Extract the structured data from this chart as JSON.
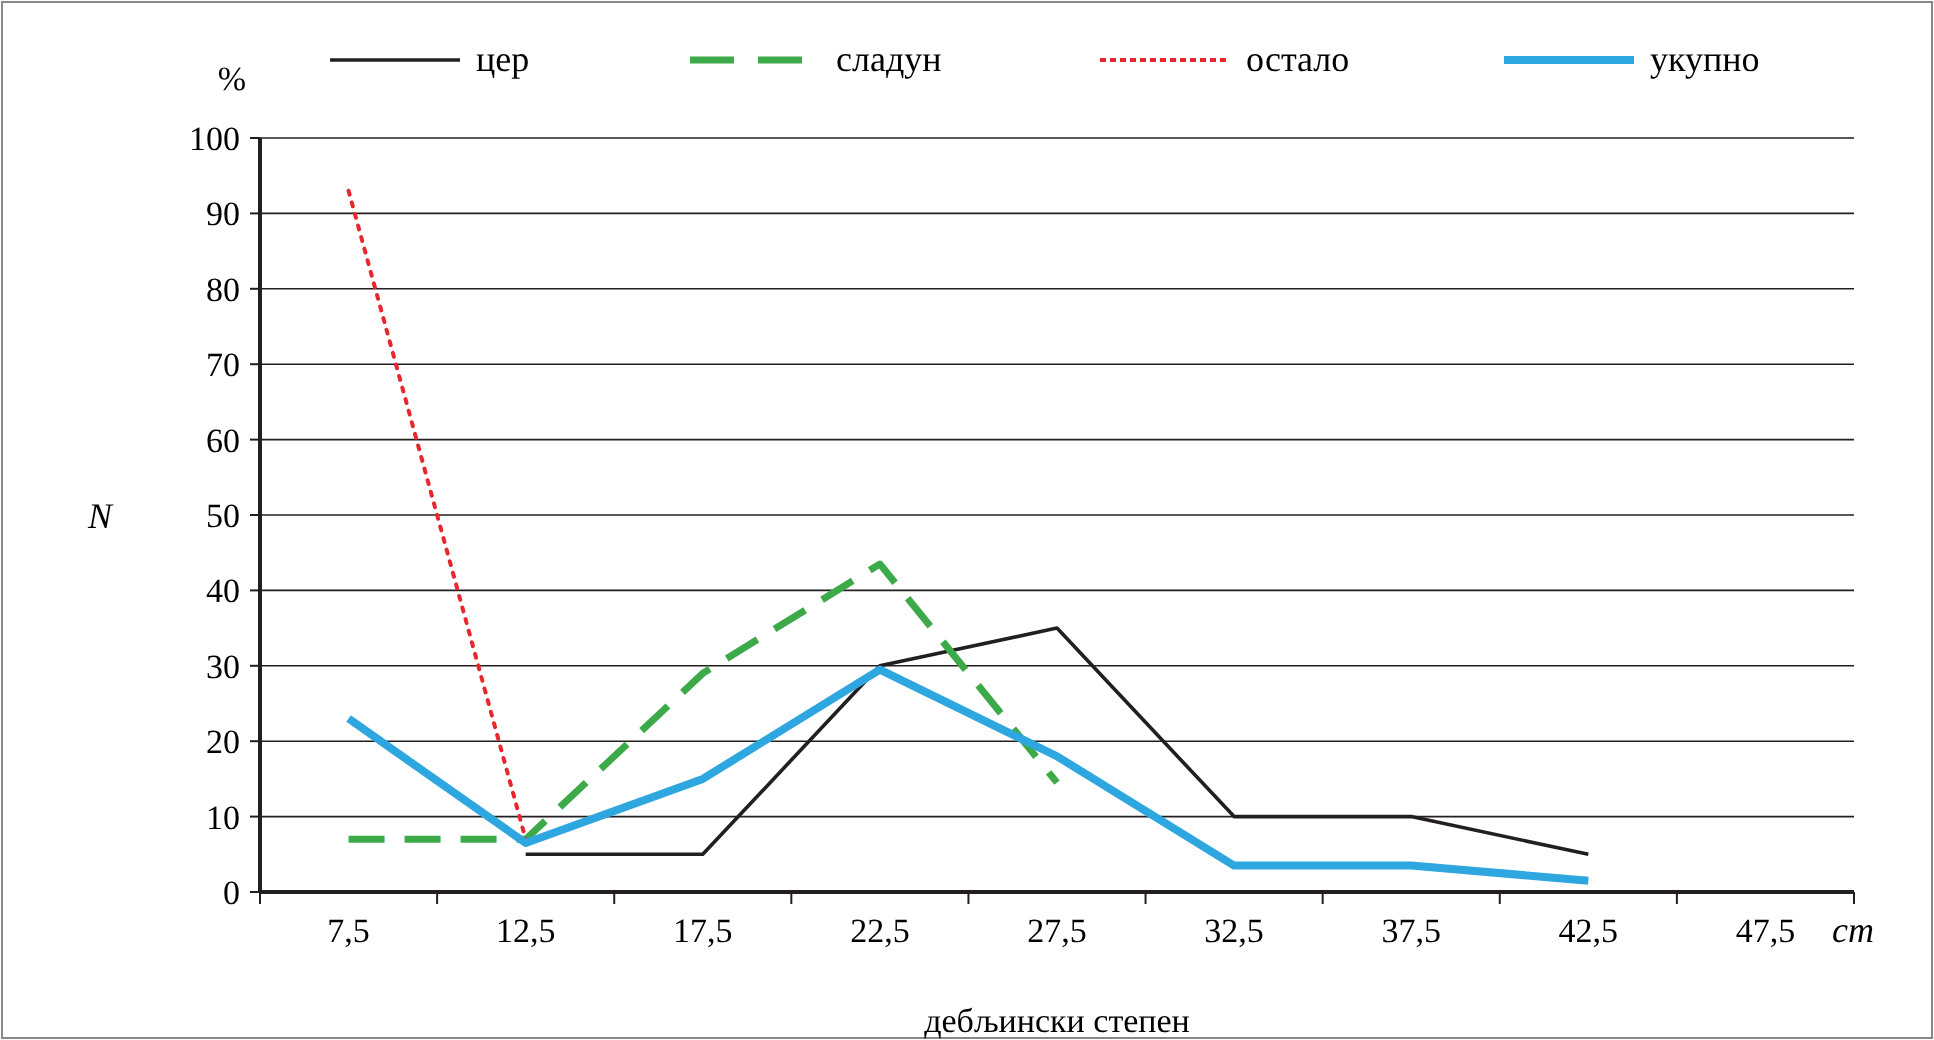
{
  "chart_data": {
    "type": "line",
    "xlabel": "дебљински степен",
    "ylabel": "N",
    "annotations": [
      "%",
      "cm"
    ],
    "categories": [
      "7,5",
      "12,5",
      "17,5",
      "22,5",
      "27,5",
      "32,5",
      "37,5",
      "42,5",
      "47,5"
    ],
    "ylim": [
      0,
      100
    ],
    "yticks": [
      0,
      10,
      20,
      30,
      40,
      50,
      60,
      70,
      80,
      90,
      100
    ],
    "grid": "y",
    "legend": "top",
    "marker": "none",
    "series": [
      {
        "name": "цер",
        "color": "#231f20",
        "line_style": "solid",
        "values": [
          null,
          5,
          5,
          30,
          35,
          10,
          10,
          5,
          null
        ]
      },
      {
        "name": "сладун",
        "color": "#3daa4a",
        "line_style": "dashed",
        "values": [
          7,
          7,
          29,
          43.5,
          14.5,
          null,
          null,
          null,
          null
        ]
      },
      {
        "name": "остало",
        "color": "#e8262d",
        "line_style": "dotted",
        "values": [
          93,
          7,
          null,
          null,
          null,
          null,
          null,
          null,
          null
        ]
      },
      {
        "name": "укупно",
        "color": "#2ea7e0",
        "line_style": "solid",
        "values": [
          23,
          6.5,
          15,
          29.5,
          18,
          3.5,
          3.5,
          1.5,
          null
        ]
      }
    ]
  }
}
